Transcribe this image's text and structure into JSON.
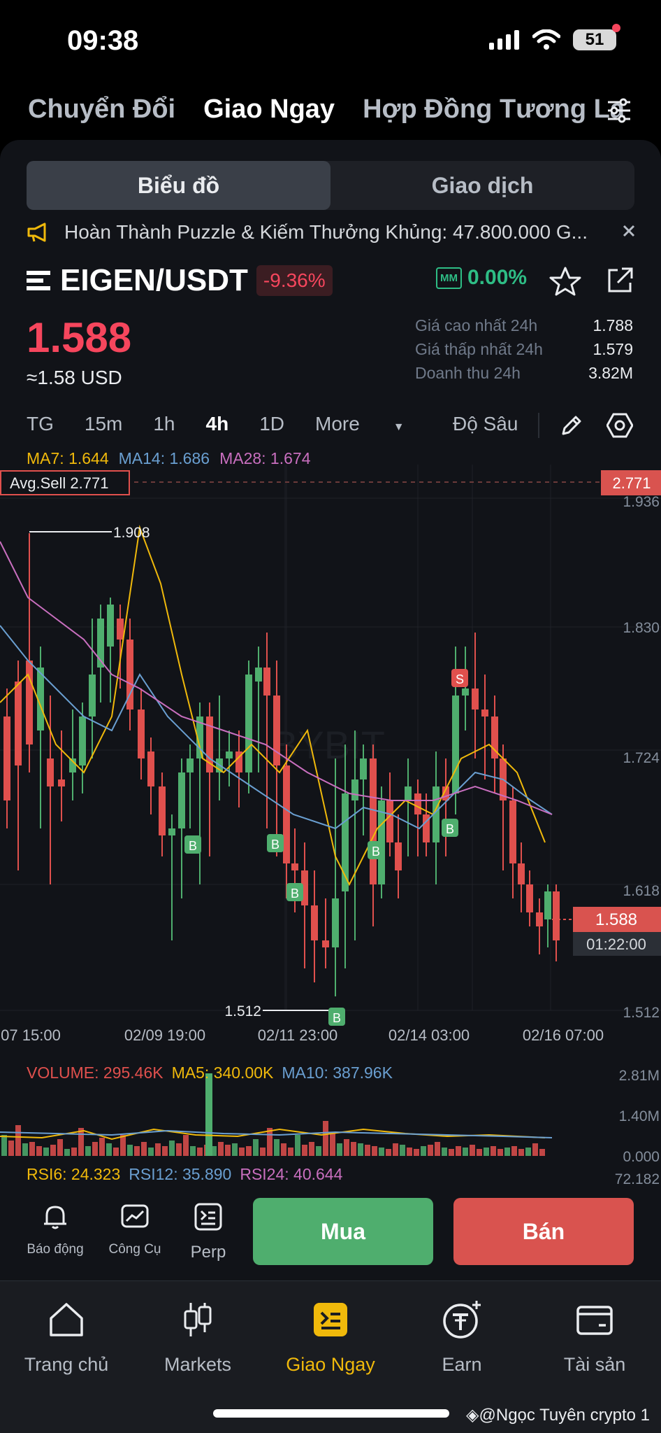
{
  "status": {
    "time": "09:38",
    "battery": "51"
  },
  "top_tabs": [
    {
      "label": "Chuyển Đổi",
      "active": false
    },
    {
      "label": "Giao Ngay",
      "active": true
    },
    {
      "label": "Hợp Đồng Tương La",
      "active": false
    }
  ],
  "segment": {
    "chart": "Biểu đồ",
    "trade": "Giao dịch"
  },
  "announcement": "Hoàn Thành Puzzle & Kiếm Thưởng Khủng: 47.800.000 G...",
  "pair": {
    "name": "EIGEN/USDT",
    "change": "-9.36%",
    "mm_badge": "MM",
    "mm_value": "0.00%"
  },
  "price": {
    "last": "1.588",
    "usd": "≈1.58 USD"
  },
  "stats": [
    {
      "label": "Giá cao nhất 24h",
      "value": "1.788"
    },
    {
      "label": "Giá thấp nhất 24h",
      "value": "1.579"
    },
    {
      "label": "Doanh thu 24h",
      "value": "3.82M"
    }
  ],
  "timeframes": [
    {
      "label": "TG",
      "active": false
    },
    {
      "label": "15m",
      "active": false
    },
    {
      "label": "1h",
      "active": false
    },
    {
      "label": "4h",
      "active": true
    },
    {
      "label": "1D",
      "active": false
    },
    {
      "label": "More",
      "active": false
    }
  ],
  "depth_label": "Độ Sâu",
  "ma_legend": {
    "ma7": "MA7: 1.644",
    "ma14": "MA14: 1.686",
    "ma28": "MA28: 1.674"
  },
  "chart": {
    "avg_sell_label": "Avg.Sell 2.771",
    "avg_sell_price": "2.771",
    "y_ticks": [
      "1.936",
      "1.830",
      "1.724",
      "1.618",
      "1.512"
    ],
    "x_ticks": [
      "07 15:00",
      "02/09 19:00",
      "02/11 23:00",
      "02/14 03:00",
      "02/16 07:00"
    ],
    "high_label": "1.908",
    "low_label": "1.512",
    "current_price": "1.588",
    "countdown": "01:22:00",
    "buy_marker": "B",
    "sell_marker": "S",
    "watermark": "BYBIT",
    "colors": {
      "up": "#4fae6e",
      "down": "#e0504d",
      "ma7": "#f0b90b",
      "ma14": "#6a9fd1",
      "ma28": "#c96fbf"
    }
  },
  "volume_legend": {
    "vol": "VOLUME: 295.46K",
    "ma5": "MA5: 340.00K",
    "ma10": "MA10: 387.96K"
  },
  "volume_ticks": [
    "2.81M",
    "1.40M",
    "0.000"
  ],
  "rsi_legend": {
    "rsi6": "RSI6: 24.323",
    "rsi12": "RSI12: 35.890",
    "rsi24": "RSI24: 40.644"
  },
  "rsi_tick": "72.182",
  "tools": [
    {
      "label": "Báo động",
      "icon": "bell-icon"
    },
    {
      "label": "Công Cụ",
      "icon": "chart-tool-icon"
    },
    {
      "label": "Perp",
      "icon": "perp-icon"
    }
  ],
  "buy_label": "Mua",
  "sell_label": "Bán",
  "nav": [
    {
      "label": "Trang chủ",
      "icon": "home-icon",
      "active": false
    },
    {
      "label": "Markets",
      "icon": "markets-icon",
      "active": false
    },
    {
      "label": "Giao Ngay",
      "icon": "spot-icon",
      "active": true
    },
    {
      "label": "Earn",
      "icon": "earn-icon",
      "active": false
    },
    {
      "label": "Tài sản",
      "icon": "wallet-icon",
      "active": false
    }
  ],
  "watermark": "@Ngọc Tuyên crypto 1"
}
